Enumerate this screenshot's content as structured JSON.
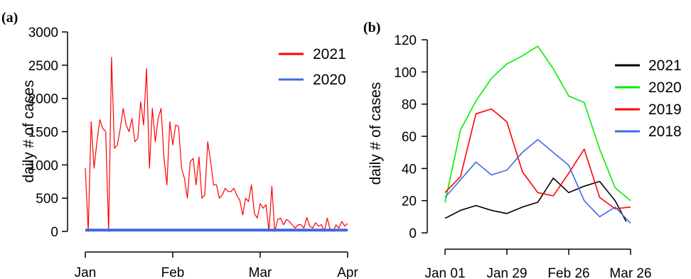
{
  "chart_data": [
    {
      "panel_label": "(a)",
      "type": "line",
      "xlabel": "",
      "ylabel": "daily # of cases",
      "x_ticks": [
        "Jan",
        "Feb",
        "Mar",
        "Apr"
      ],
      "x_range_days": [
        0,
        90
      ],
      "y_ticks": [
        "0",
        "500",
        "1000",
        "1500",
        "2000",
        "2500",
        "3000"
      ],
      "ylim": [
        0,
        3000
      ],
      "legend_position": "top-right",
      "grid": false,
      "series": [
        {
          "name": "2021",
          "color": "#ff0000",
          "x": [
            0,
            1,
            2,
            3,
            4,
            5,
            6,
            7,
            8,
            9,
            10,
            11,
            12,
            13,
            14,
            15,
            16,
            17,
            18,
            19,
            20,
            21,
            22,
            23,
            24,
            25,
            26,
            27,
            28,
            29,
            30,
            31,
            32,
            33,
            34,
            35,
            36,
            37,
            38,
            39,
            40,
            41,
            42,
            43,
            44,
            45,
            46,
            47,
            48,
            49,
            50,
            51,
            52,
            53,
            54,
            55,
            56,
            57,
            58,
            59,
            60,
            61,
            62,
            63,
            64,
            65,
            66,
            67,
            68,
            69,
            70,
            71,
            72,
            73,
            74,
            75,
            76,
            77,
            78,
            79,
            80,
            81,
            82,
            83,
            84,
            85,
            86,
            87,
            88,
            89,
            90
          ],
          "values": [
            950,
            0,
            1650,
            950,
            1350,
            1680,
            1550,
            1500,
            0,
            2620,
            1250,
            1300,
            1550,
            1850,
            1600,
            1500,
            1700,
            1350,
            1400,
            1950,
            1600,
            2450,
            950,
            1850,
            1350,
            1700,
            1850,
            1100,
            700,
            1650,
            1300,
            1600,
            1580,
            950,
            800,
            500,
            1050,
            1100,
            700,
            1120,
            500,
            550,
            1350,
            1050,
            700,
            700,
            500,
            550,
            650,
            600,
            600,
            650,
            540,
            470,
            250,
            500,
            450,
            700,
            270,
            200,
            420,
            350,
            400,
            0,
            680,
            0,
            180,
            200,
            100,
            180,
            150,
            100,
            50,
            100,
            100,
            50,
            210,
            80,
            50,
            130,
            80,
            100,
            0,
            200,
            30,
            0,
            100,
            50,
            150,
            80,
            120
          ]
        },
        {
          "name": "2020",
          "color": "#4169e1",
          "x": [
            0,
            90
          ],
          "values": [
            20,
            20
          ]
        }
      ]
    },
    {
      "panel_label": "(b)",
      "type": "line",
      "xlabel": "",
      "ylabel": "daily # of cases",
      "x_ticks": [
        "Jan 01",
        "Jan 29",
        "Feb 26",
        "Mar 26"
      ],
      "x_range_days": [
        0,
        84
      ],
      "y_ticks": [
        "0",
        "20",
        "40",
        "60",
        "80",
        "100",
        "120"
      ],
      "ylim": [
        0,
        120
      ],
      "legend_position": "top-right",
      "grid": false,
      "series": [
        {
          "name": "2021",
          "color": "#000000",
          "x": [
            0,
            7,
            14,
            21,
            28,
            35,
            42,
            49,
            56,
            63,
            70,
            77,
            82
          ],
          "values": [
            9,
            14,
            17,
            14,
            12,
            16,
            19,
            34,
            25,
            29,
            32,
            20,
            7
          ]
        },
        {
          "name": "2020",
          "color": "#00ee00",
          "x": [
            0,
            7,
            14,
            21,
            28,
            35,
            42,
            49,
            56,
            63,
            70,
            77,
            84
          ],
          "values": [
            19,
            64,
            82,
            96,
            105,
            110,
            116,
            102,
            85,
            81,
            52,
            28,
            20
          ]
        },
        {
          "name": "2019",
          "color": "#ff0000",
          "x": [
            0,
            7,
            14,
            21,
            28,
            35,
            42,
            49,
            56,
            63,
            70,
            77,
            84
          ],
          "values": [
            25,
            35,
            74,
            77,
            69,
            38,
            25,
            23,
            37,
            52,
            22,
            15,
            16
          ]
        },
        {
          "name": "2018",
          "color": "#4169e1",
          "x": [
            0,
            7,
            14,
            21,
            28,
            35,
            42,
            49,
            56,
            63,
            70,
            77,
            84
          ],
          "values": [
            22,
            33,
            44,
            36,
            39,
            50,
            58,
            50,
            42,
            20,
            10,
            16,
            6
          ]
        }
      ]
    }
  ]
}
